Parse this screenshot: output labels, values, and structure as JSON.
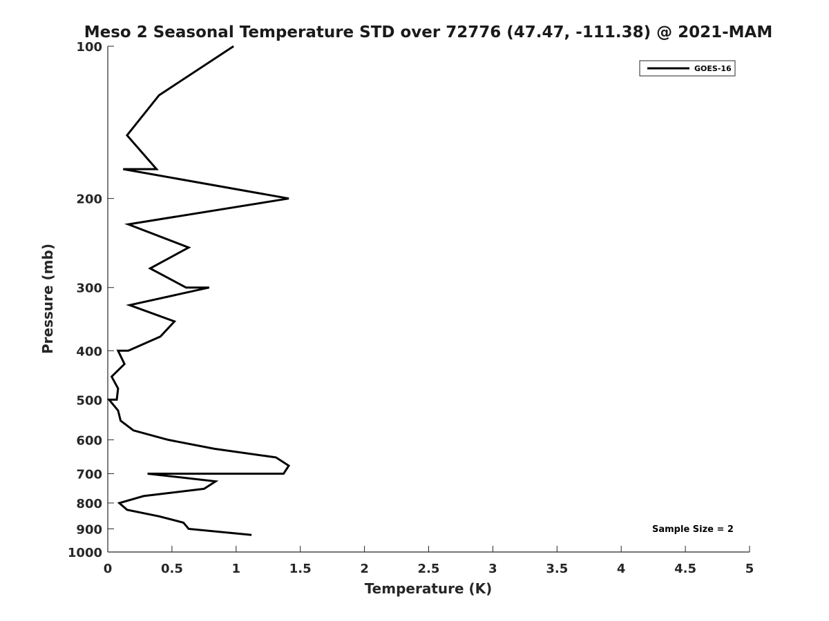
{
  "chart_data": {
    "type": "line",
    "title": "Meso 2 Seasonal Temperature STD over 72776 (47.47, -111.38) @ 2021-MAM",
    "xlabel": "Temperature (K)",
    "ylabel": "Pressure (mb)",
    "xlim": [
      0,
      5
    ],
    "ylim": [
      100,
      1000
    ],
    "y_scale": "log",
    "y_reversed": true,
    "x_ticks": [
      "0",
      "0.5",
      "1",
      "1.5",
      "2",
      "2.5",
      "3",
      "3.5",
      "4",
      "4.5",
      "5"
    ],
    "y_ticks": [
      "100",
      "200",
      "300",
      "400",
      "500",
      "600",
      "700",
      "800",
      "900",
      "1000"
    ],
    "grid": false,
    "legend_position": "top-right",
    "annotation": "Sample Size = 2",
    "series": [
      {
        "name": "GOES-16",
        "color": "#000000",
        "points": [
          {
            "t": 0.98,
            "p": 100
          },
          {
            "t": 0.4,
            "p": 125
          },
          {
            "t": 0.15,
            "p": 150
          },
          {
            "t": 0.38,
            "p": 175
          },
          {
            "t": 0.12,
            "p": 175
          },
          {
            "t": 1.41,
            "p": 200
          },
          {
            "t": 0.16,
            "p": 225
          },
          {
            "t": 0.63,
            "p": 250
          },
          {
            "t": 0.33,
            "p": 275
          },
          {
            "t": 0.61,
            "p": 300
          },
          {
            "t": 0.79,
            "p": 300
          },
          {
            "t": 0.17,
            "p": 325
          },
          {
            "t": 0.52,
            "p": 350
          },
          {
            "t": 0.41,
            "p": 375
          },
          {
            "t": 0.16,
            "p": 400
          },
          {
            "t": 0.08,
            "p": 400
          },
          {
            "t": 0.13,
            "p": 425
          },
          {
            "t": 0.03,
            "p": 450
          },
          {
            "t": 0.08,
            "p": 475
          },
          {
            "t": 0.07,
            "p": 500
          },
          {
            "t": 0.01,
            "p": 500
          },
          {
            "t": 0.08,
            "p": 525
          },
          {
            "t": 0.1,
            "p": 550
          },
          {
            "t": 0.2,
            "p": 575
          },
          {
            "t": 0.47,
            "p": 600
          },
          {
            "t": 0.83,
            "p": 625
          },
          {
            "t": 1.31,
            "p": 650
          },
          {
            "t": 1.41,
            "p": 675
          },
          {
            "t": 1.37,
            "p": 700
          },
          {
            "t": 0.31,
            "p": 700
          },
          {
            "t": 0.84,
            "p": 725
          },
          {
            "t": 0.75,
            "p": 750
          },
          {
            "t": 0.28,
            "p": 775
          },
          {
            "t": 0.09,
            "p": 800
          },
          {
            "t": 0.15,
            "p": 825
          },
          {
            "t": 0.4,
            "p": 850
          },
          {
            "t": 0.59,
            "p": 875
          },
          {
            "t": 0.63,
            "p": 900
          },
          {
            "t": 1.12,
            "p": 925
          }
        ]
      }
    ]
  }
}
